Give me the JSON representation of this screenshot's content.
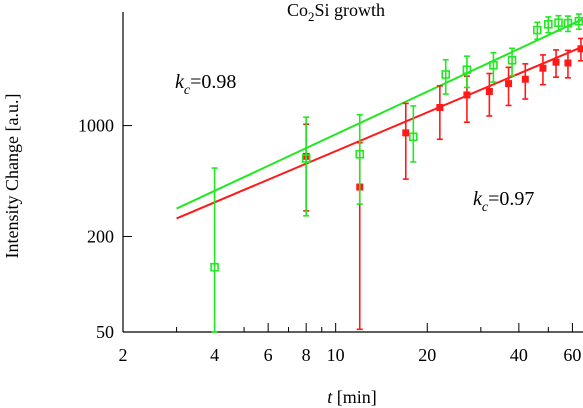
{
  "chart_data": {
    "type": "scatter",
    "title": "Co2Si growth",
    "title_main": "Co",
    "title_sub": "2",
    "title_rest": "Si growth",
    "xlabel_italic": "t",
    "xlabel_rest": " [min]",
    "ylabel": "Intensity Change [a.u.]",
    "x_scale": "log",
    "y_scale": "log",
    "xlim": [
      2,
      65
    ],
    "ylim": [
      50,
      5200
    ],
    "x_ticks_labeled": [
      2,
      4,
      6,
      8,
      10,
      20,
      40,
      60
    ],
    "x_tick_labels": [
      "2",
      "4",
      "6",
      "8",
      "10",
      "20",
      "40",
      "60"
    ],
    "x_ticks_minor": [
      3,
      5,
      7,
      9,
      30,
      50
    ],
    "y_ticks_labeled": [
      50,
      200,
      1000
    ],
    "y_tick_labels": [
      "50",
      "200",
      "1000"
    ],
    "grid": false,
    "legend": "none",
    "annotations": [
      {
        "id": "kc_green",
        "k_text": "k",
        "sub_text": "c",
        "value_text": "=0.98"
      },
      {
        "id": "kc_red",
        "k_text": "k",
        "sub_text": "c",
        "value_text": "=0.97"
      }
    ],
    "series": [
      {
        "color": "#ff1a1a",
        "marker": "filled-square",
        "fit_line": {
          "x": [
            3,
            65
          ],
          "y": [
            260,
            3150
          ]
        },
        "points": [
          {
            "x": 8,
            "y": 640,
            "err_low": 290,
            "err_high": 1020
          },
          {
            "x": 12,
            "y": 410,
            "err_low": 52,
            "err_high": 780
          },
          {
            "x": 17,
            "y": 900,
            "err_low": 460,
            "err_high": 1380
          },
          {
            "x": 22,
            "y": 1300,
            "err_low": 820,
            "err_high": 1780
          },
          {
            "x": 27,
            "y": 1560,
            "err_low": 1050,
            "err_high": 2050
          },
          {
            "x": 32,
            "y": 1640,
            "err_low": 1150,
            "err_high": 2130
          },
          {
            "x": 37,
            "y": 1840,
            "err_low": 1340,
            "err_high": 2330
          },
          {
            "x": 42,
            "y": 1960,
            "err_low": 1470,
            "err_high": 2450
          },
          {
            "x": 48,
            "y": 2300,
            "err_low": 1810,
            "err_high": 2790
          },
          {
            "x": 53,
            "y": 2510,
            "err_low": 2020,
            "err_high": 3000
          },
          {
            "x": 58,
            "y": 2480,
            "err_low": 2000,
            "err_high": 2980
          },
          {
            "x": 64,
            "y": 3050,
            "err_low": 2560,
            "err_high": 3540
          }
        ]
      },
      {
        "color": "#22e822",
        "marker": "open-square",
        "fit_line": {
          "x": [
            3,
            65
          ],
          "y": [
            300,
            4700
          ]
        },
        "points": [
          {
            "x": 4,
            "y": 128,
            "err_low": 50,
            "err_high": 540
          },
          {
            "x": 8,
            "y": 620,
            "err_low": 270,
            "err_high": 1130
          },
          {
            "x": 12,
            "y": 660,
            "err_low": 320,
            "err_high": 1170
          },
          {
            "x": 18,
            "y": 850,
            "err_low": 590,
            "err_high": 1330
          },
          {
            "x": 23,
            "y": 2100,
            "err_low": 1580,
            "err_high": 2600
          },
          {
            "x": 27,
            "y": 2250,
            "err_low": 1740,
            "err_high": 2740
          },
          {
            "x": 33,
            "y": 2400,
            "err_low": 1880,
            "err_high": 2880
          },
          {
            "x": 38,
            "y": 2580,
            "err_low": 2060,
            "err_high": 3070
          },
          {
            "x": 46,
            "y": 4000,
            "err_low": 3500,
            "err_high": 4480
          },
          {
            "x": 50,
            "y": 4350,
            "err_low": 3850,
            "err_high": 4840
          },
          {
            "x": 54,
            "y": 4450,
            "err_low": 3950,
            "err_high": 4930
          },
          {
            "x": 58,
            "y": 4420,
            "err_low": 3920,
            "err_high": 4900
          },
          {
            "x": 63,
            "y": 4550,
            "err_low": 4050,
            "err_high": 5050
          }
        ]
      }
    ]
  }
}
